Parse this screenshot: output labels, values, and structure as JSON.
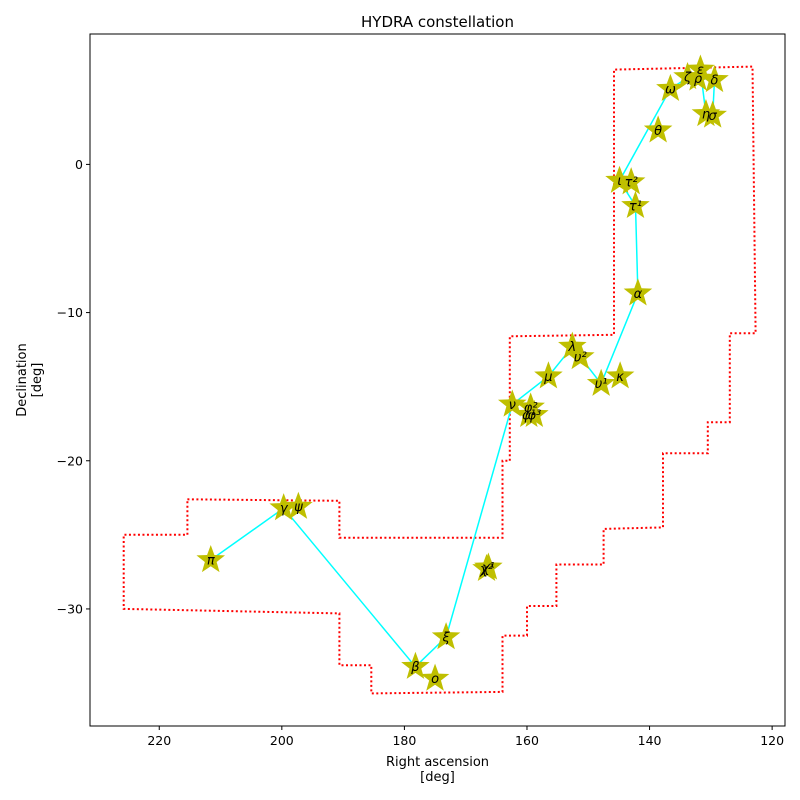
{
  "chart_data": {
    "type": "scatter",
    "title": "HYDRA constellation",
    "xlabel": "Right ascension\n[deg]",
    "ylabel": "Declination\n[deg]",
    "xlim": [
      231.3,
      117.9
    ],
    "ylim": [
      -37.9,
      8.8
    ],
    "x_ticks": [
      220,
      200,
      180,
      160,
      140,
      120
    ],
    "y_ticks": [
      0,
      -10,
      -20,
      -30
    ],
    "grid": false,
    "colors": {
      "star_fill": "#bfbf00",
      "line": "#00ffff",
      "boundary": "#ff0000"
    },
    "stars": [
      {
        "label": "π",
        "ra": 211.6,
        "dec": -26.7
      },
      {
        "label": "γ",
        "ra": 199.7,
        "dec": -23.2
      },
      {
        "label": "ψ",
        "ra": 197.3,
        "dec": -23.1
      },
      {
        "label": "β",
        "ra": 178.2,
        "dec": -33.9
      },
      {
        "label": "ο",
        "ra": 175.0,
        "dec": -34.7
      },
      {
        "label": "ξ",
        "ra": 173.2,
        "dec": -31.9
      },
      {
        "label": "χ²",
        "ra": 166.6,
        "dec": -27.3
      },
      {
        "label": "χ¹",
        "ra": 166.3,
        "dec": -27.2
      },
      {
        "label": "ν",
        "ra": 162.4,
        "dec": -16.2
      },
      {
        "label": "φ²",
        "ra": 159.4,
        "dec": -16.4
      },
      {
        "label": "φ³",
        "ra": 158.8,
        "dec": -16.9
      },
      {
        "label": "φ¹",
        "ra": 159.7,
        "dec": -16.9
      },
      {
        "label": "μ",
        "ra": 156.5,
        "dec": -14.3
      },
      {
        "label": "λ",
        "ra": 152.6,
        "dec": -12.3
      },
      {
        "label": "υ²",
        "ra": 151.3,
        "dec": -13.0
      },
      {
        "label": "υ¹",
        "ra": 147.9,
        "dec": -14.8
      },
      {
        "label": "κ",
        "ra": 144.8,
        "dec": -14.3
      },
      {
        "label": "α",
        "ra": 141.9,
        "dec": -8.7
      },
      {
        "label": "τ¹",
        "ra": 142.3,
        "dec": -2.8
      },
      {
        "label": "τ²",
        "ra": 143.0,
        "dec": -1.2
      },
      {
        "label": "ι",
        "ra": 144.9,
        "dec": -1.1
      },
      {
        "label": "θ",
        "ra": 138.6,
        "dec": 2.3
      },
      {
        "label": "ω",
        "ra": 136.6,
        "dec": 5.1
      },
      {
        "label": "ζ",
        "ra": 133.8,
        "dec": 5.9
      },
      {
        "label": "ε",
        "ra": 131.7,
        "dec": 6.4
      },
      {
        "label": "ρ",
        "ra": 132.1,
        "dec": 5.8
      },
      {
        "label": "δ",
        "ra": 129.4,
        "dec": 5.7
      },
      {
        "label": "η",
        "ra": 130.8,
        "dec": 3.4
      },
      {
        "label": "σ",
        "ra": 129.7,
        "dec": 3.3
      }
    ],
    "lines": [
      [
        [
          211.6,
          -26.7
        ],
        [
          199.7,
          -23.2
        ],
        [
          178.2,
          -33.9
        ],
        [
          173.2,
          -31.9
        ],
        [
          162.4,
          -16.2
        ],
        [
          156.5,
          -14.3
        ],
        [
          152.6,
          -12.3
        ],
        [
          147.9,
          -14.8
        ],
        [
          141.9,
          -8.7
        ],
        [
          142.3,
          -2.8
        ],
        [
          144.9,
          -1.1
        ],
        [
          136.6,
          5.1
        ],
        [
          131.7,
          6.4
        ],
        [
          130.8,
          3.4
        ],
        [
          129.7,
          3.3
        ],
        [
          129.4,
          5.7
        ],
        [
          133.8,
          5.9
        ]
      ]
    ],
    "boundary": [
      [
        215.4,
        -22.6
      ],
      [
        190.6,
        -22.7
      ],
      [
        190.6,
        -25.2
      ],
      [
        164.0,
        -25.2
      ],
      [
        164.0,
        -20.0
      ],
      [
        162.8,
        -20.0
      ],
      [
        162.8,
        -11.6
      ],
      [
        145.8,
        -11.5
      ],
      [
        145.8,
        6.4
      ],
      [
        123.2,
        6.6
      ],
      [
        122.7,
        -11.4
      ],
      [
        126.9,
        -11.4
      ],
      [
        126.9,
        -17.4
      ],
      [
        130.5,
        -17.4
      ],
      [
        130.5,
        -19.5
      ],
      [
        137.8,
        -19.5
      ],
      [
        137.8,
        -24.5
      ],
      [
        147.5,
        -24.6
      ],
      [
        147.5,
        -27.0
      ],
      [
        155.2,
        -27.0
      ],
      [
        155.2,
        -29.8
      ],
      [
        160.0,
        -29.8
      ],
      [
        160.0,
        -31.8
      ],
      [
        164.0,
        -31.8
      ],
      [
        164.0,
        -35.6
      ],
      [
        185.4,
        -35.7
      ],
      [
        185.4,
        -33.8
      ],
      [
        190.6,
        -33.8
      ],
      [
        190.6,
        -30.3
      ],
      [
        225.8,
        -30.0
      ],
      [
        225.8,
        -25.0
      ],
      [
        215.4,
        -25.0
      ],
      [
        215.4,
        -22.6
      ]
    ]
  }
}
